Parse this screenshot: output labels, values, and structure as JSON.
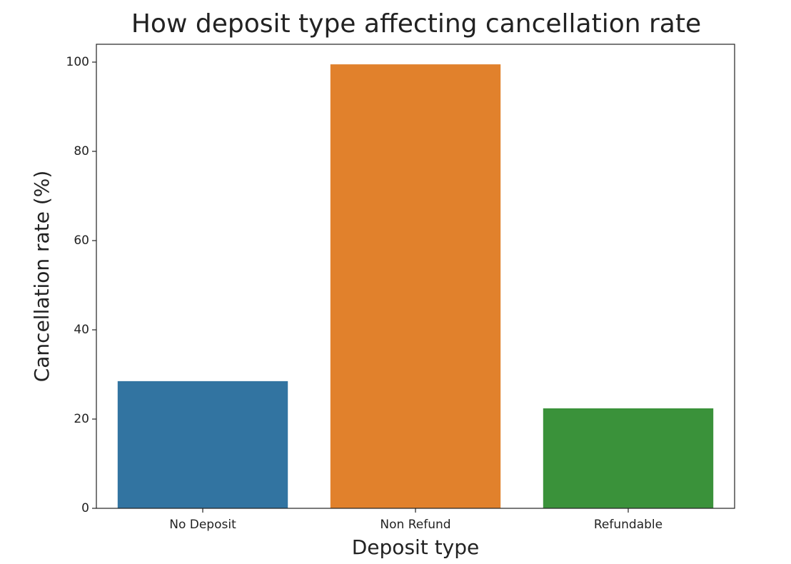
{
  "chart_data": {
    "type": "bar",
    "title": "How deposit type affecting cancellation rate",
    "xlabel": "Deposit type",
    "ylabel": "Cancellation rate (%)",
    "categories": [
      "No Deposit",
      "Non Refund",
      "Refundable"
    ],
    "values": [
      28.5,
      99.5,
      22.4
    ],
    "colors": [
      "#3274a1",
      "#e1812c",
      "#3a923a"
    ],
    "ylim": [
      0,
      104
    ],
    "yticks": [
      0,
      20,
      40,
      60,
      80,
      100
    ]
  }
}
